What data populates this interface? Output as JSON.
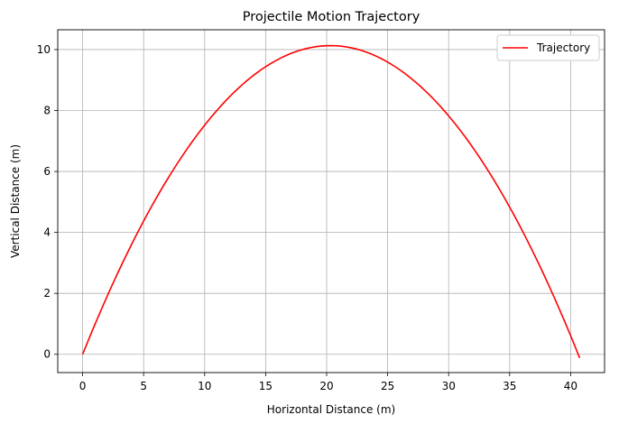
{
  "chart_data": {
    "type": "line",
    "title": "Projectile Motion Trajectory",
    "xlabel": "Horizontal Distance (m)",
    "ylabel": "Vertical Distance (m)",
    "xlim": [
      -2.04,
      42.78
    ],
    "ylim": [
      -0.6,
      10.65
    ],
    "xticks": [
      0,
      5,
      10,
      15,
      20,
      25,
      30,
      35,
      40
    ],
    "yticks": [
      0,
      2,
      4,
      6,
      8,
      10
    ],
    "grid": true,
    "legend": {
      "position": "top-right",
      "entries": [
        "Trajectory"
      ]
    },
    "series": [
      {
        "name": "Trajectory",
        "color": "#ff0000",
        "model": {
          "x_max": 40.74,
          "apex_x": 20.31,
          "apex_y": 10.13,
          "points": 101
        }
      }
    ]
  }
}
